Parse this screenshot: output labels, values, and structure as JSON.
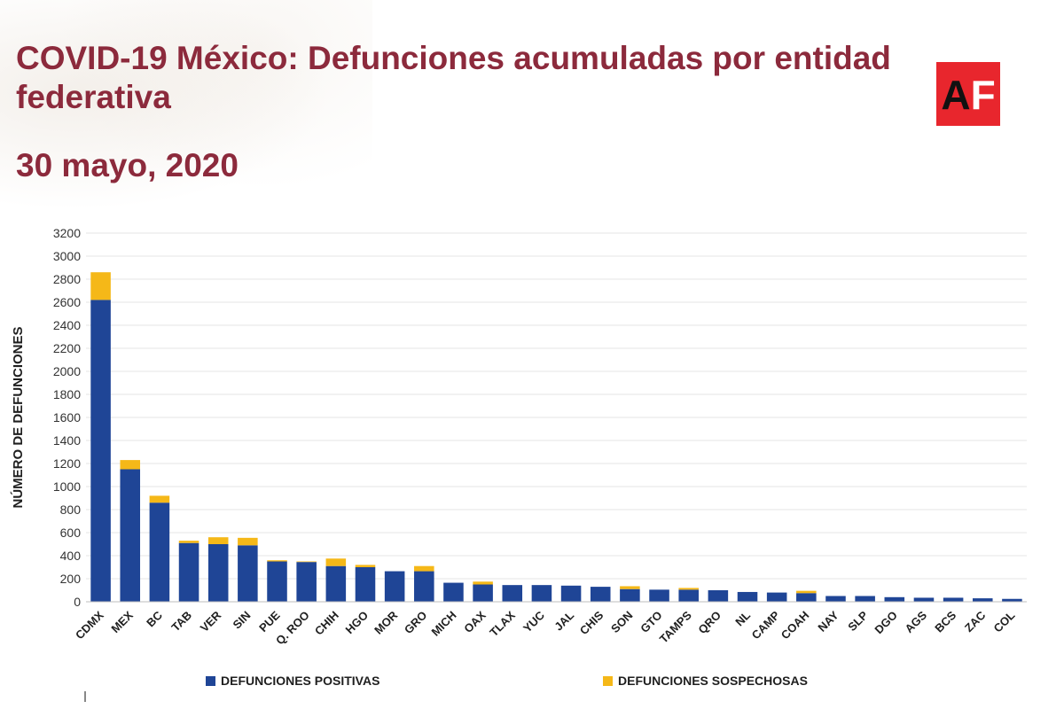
{
  "header": {
    "title_line1": "COVID-19 México: Defunciones acumuladas por entidad",
    "title_line2": "federativa",
    "date": "30 mayo, 2020"
  },
  "logo": {
    "text": "AF",
    "background": "#e8262d"
  },
  "colors": {
    "title": "#8c2a3c",
    "positive": "#1f4596",
    "suspected": "#f5b818",
    "grid": "#e5e5e5"
  },
  "chart_data": {
    "type": "bar",
    "stacked": true,
    "ylabel": "NÚMERO DE DEFUNCIONES",
    "xlabel": "",
    "ylim": [
      0,
      3200
    ],
    "yticks": [
      0,
      200,
      400,
      600,
      800,
      1000,
      1200,
      1400,
      1600,
      1800,
      2000,
      2200,
      2400,
      2600,
      2800,
      3000,
      3200
    ],
    "grid": true,
    "legend_position": "bottom",
    "categories": [
      "CDMX",
      "MEX",
      "BC",
      "TAB",
      "VER",
      "SIN",
      "PUE",
      "Q. ROO",
      "CHIH",
      "HGO",
      "MOR",
      "GRO",
      "MICH",
      "OAX",
      "TLAX",
      "YUC",
      "JAL",
      "CHIS",
      "SON",
      "GTO",
      "TAMPS",
      "QRO",
      "NL",
      "CAMP",
      "COAH",
      "NAY",
      "SLP",
      "DGO",
      "AGS",
      "BCS",
      "ZAC",
      "COL"
    ],
    "series": [
      {
        "name": "DEFUNCIONES POSITIVAS",
        "color": "#1f4596",
        "values": [
          2620,
          1150,
          860,
          510,
          500,
          490,
          350,
          345,
          310,
          300,
          265,
          265,
          165,
          150,
          145,
          145,
          140,
          130,
          110,
          105,
          105,
          100,
          85,
          80,
          75,
          50,
          50,
          40,
          35,
          35,
          30,
          25
        ]
      },
      {
        "name": "DEFUNCIONES SOSPECHOSAS",
        "color": "#f5b818",
        "values": [
          240,
          80,
          60,
          20,
          60,
          65,
          10,
          5,
          65,
          20,
          0,
          45,
          0,
          25,
          0,
          0,
          0,
          0,
          25,
          0,
          15,
          0,
          0,
          0,
          20,
          0,
          0,
          0,
          0,
          0,
          0,
          0
        ]
      }
    ]
  }
}
